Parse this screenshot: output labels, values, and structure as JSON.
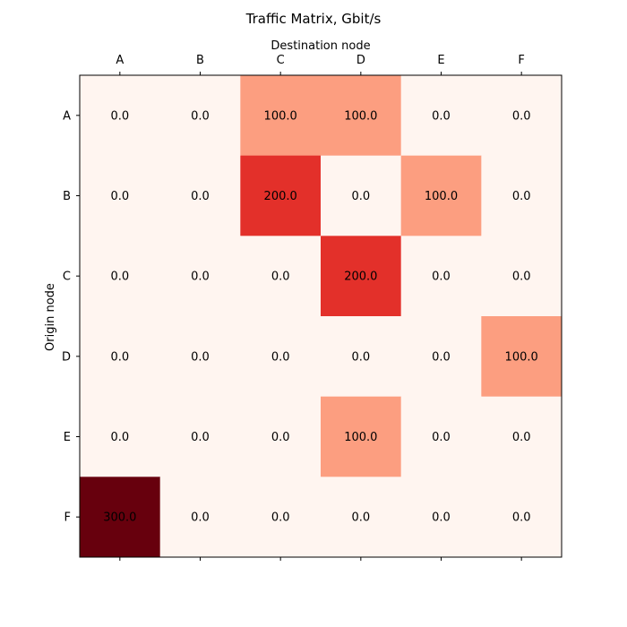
{
  "chart_data": {
    "type": "heatmap",
    "title": "Traffic Matrix, Gbit/s",
    "xlabel": "Destination node",
    "ylabel": "Origin node",
    "x_categories": [
      "A",
      "B",
      "C",
      "D",
      "E",
      "F"
    ],
    "y_categories": [
      "A",
      "B",
      "C",
      "D",
      "E",
      "F"
    ],
    "values": [
      [
        0.0,
        0.0,
        100.0,
        100.0,
        0.0,
        0.0
      ],
      [
        0.0,
        0.0,
        200.0,
        0.0,
        100.0,
        0.0
      ],
      [
        0.0,
        0.0,
        0.0,
        200.0,
        0.0,
        0.0
      ],
      [
        0.0,
        0.0,
        0.0,
        0.0,
        0.0,
        100.0
      ],
      [
        0.0,
        0.0,
        0.0,
        100.0,
        0.0,
        0.0
      ],
      [
        300.0,
        0.0,
        0.0,
        0.0,
        0.0,
        0.0
      ]
    ],
    "value_range": [
      0,
      300
    ],
    "colormap": "Reds",
    "x_axis_position": "top",
    "grid": false,
    "colors": {
      "0": "#fff5f0",
      "100": "#fc9e80",
      "200": "#e3302a",
      "300": "#67000d"
    }
  }
}
